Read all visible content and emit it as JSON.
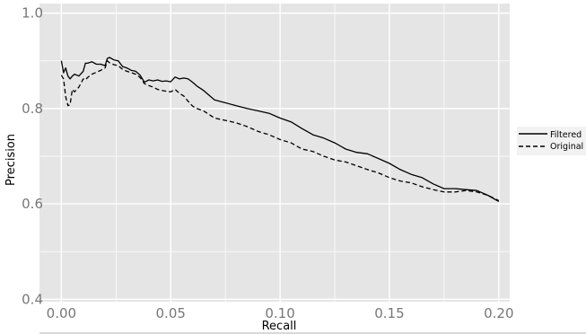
{
  "chart_data": {
    "type": "line",
    "title": "",
    "xlabel": "Recall",
    "ylabel": "Precision",
    "xlim": [
      -0.01,
      0.205
    ],
    "ylim": [
      0.395,
      1.02
    ],
    "xticks": [
      0.0,
      0.05,
      0.1,
      0.15,
      0.2
    ],
    "xtick_labels": [
      "0.00",
      "0.05",
      "0.10",
      "0.15",
      "0.20"
    ],
    "yticks": [
      0.4,
      0.6,
      0.8,
      1.0
    ],
    "ytick_labels": [
      "0.4",
      "0.6",
      "0.8",
      "1.0"
    ],
    "grid": true,
    "legend_position": "right",
    "colors": {
      "panel": "#e5e5e5",
      "grid": "#ffffff",
      "line": "#000000"
    },
    "series": [
      {
        "name": "Filtered",
        "dash": "solid",
        "x": [
          0.0,
          0.001,
          0.002,
          0.003,
          0.004,
          0.005,
          0.006,
          0.008,
          0.01,
          0.011,
          0.012,
          0.014,
          0.016,
          0.018,
          0.02,
          0.021,
          0.022,
          0.024,
          0.026,
          0.028,
          0.03,
          0.032,
          0.034,
          0.036,
          0.038,
          0.04,
          0.042,
          0.044,
          0.046,
          0.048,
          0.05,
          0.052,
          0.054,
          0.056,
          0.058,
          0.06,
          0.062,
          0.065,
          0.07,
          0.075,
          0.08,
          0.085,
          0.09,
          0.095,
          0.1,
          0.105,
          0.11,
          0.115,
          0.12,
          0.125,
          0.13,
          0.135,
          0.14,
          0.145,
          0.15,
          0.155,
          0.16,
          0.165,
          0.17,
          0.175,
          0.18,
          0.185,
          0.19,
          0.195,
          0.2
        ],
        "y": [
          0.9,
          0.875,
          0.885,
          0.868,
          0.862,
          0.868,
          0.872,
          0.868,
          0.878,
          0.895,
          0.895,
          0.898,
          0.893,
          0.893,
          0.89,
          0.905,
          0.907,
          0.902,
          0.9,
          0.888,
          0.885,
          0.88,
          0.878,
          0.87,
          0.855,
          0.86,
          0.858,
          0.86,
          0.857,
          0.858,
          0.856,
          0.866,
          0.862,
          0.864,
          0.862,
          0.855,
          0.847,
          0.838,
          0.818,
          0.812,
          0.806,
          0.8,
          0.795,
          0.79,
          0.78,
          0.772,
          0.758,
          0.745,
          0.738,
          0.728,
          0.715,
          0.708,
          0.705,
          0.695,
          0.685,
          0.672,
          0.662,
          0.655,
          0.642,
          0.632,
          0.632,
          0.63,
          0.628,
          0.618,
          0.605
        ]
      },
      {
        "name": "Original",
        "dash": "dashed",
        "x": [
          0.0,
          0.001,
          0.002,
          0.003,
          0.004,
          0.005,
          0.006,
          0.008,
          0.01,
          0.011,
          0.012,
          0.014,
          0.016,
          0.018,
          0.02,
          0.021,
          0.022,
          0.024,
          0.026,
          0.028,
          0.03,
          0.032,
          0.034,
          0.036,
          0.038,
          0.04,
          0.042,
          0.044,
          0.046,
          0.048,
          0.05,
          0.052,
          0.054,
          0.056,
          0.058,
          0.06,
          0.062,
          0.065,
          0.07,
          0.075,
          0.08,
          0.085,
          0.09,
          0.095,
          0.1,
          0.105,
          0.11,
          0.115,
          0.12,
          0.125,
          0.13,
          0.135,
          0.14,
          0.145,
          0.15,
          0.155,
          0.16,
          0.165,
          0.17,
          0.175,
          0.18,
          0.185,
          0.19,
          0.195,
          0.2
        ],
        "y": [
          0.87,
          0.862,
          0.825,
          0.806,
          0.808,
          0.84,
          0.835,
          0.845,
          0.862,
          0.86,
          0.865,
          0.872,
          0.876,
          0.88,
          0.885,
          0.9,
          0.896,
          0.892,
          0.89,
          0.882,
          0.878,
          0.875,
          0.872,
          0.865,
          0.852,
          0.848,
          0.845,
          0.84,
          0.838,
          0.836,
          0.835,
          0.84,
          0.832,
          0.826,
          0.815,
          0.805,
          0.8,
          0.795,
          0.78,
          0.775,
          0.77,
          0.762,
          0.752,
          0.745,
          0.735,
          0.728,
          0.715,
          0.71,
          0.7,
          0.692,
          0.688,
          0.68,
          0.672,
          0.665,
          0.655,
          0.648,
          0.644,
          0.636,
          0.63,
          0.625,
          0.625,
          0.628,
          0.625,
          0.618,
          0.607
        ]
      }
    ]
  }
}
